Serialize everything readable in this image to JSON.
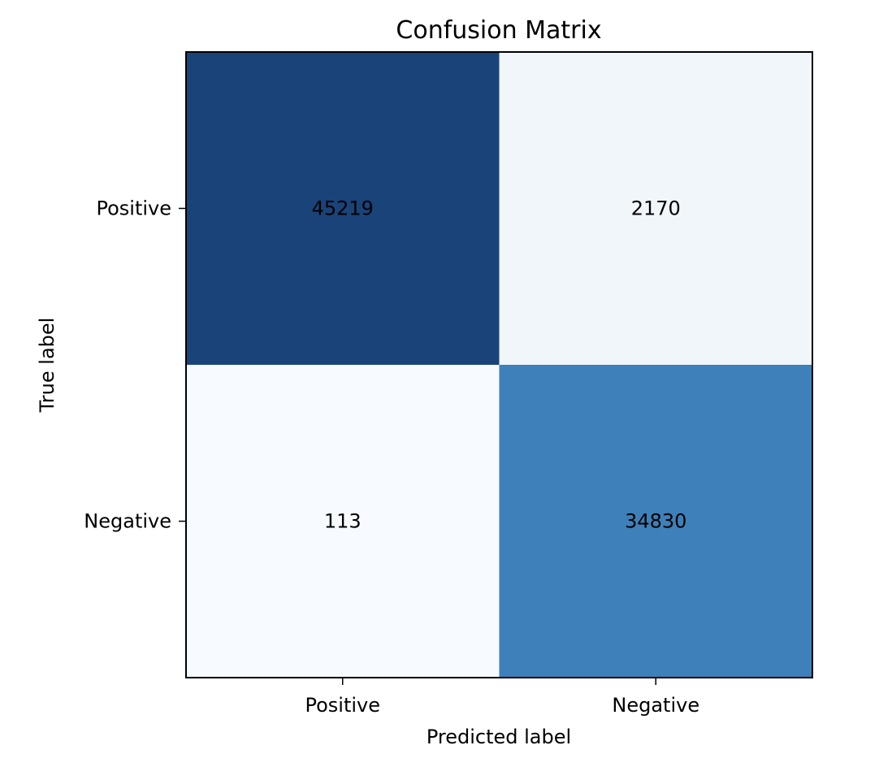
{
  "chart_data": {
    "type": "heatmap",
    "title": "Confusion Matrix",
    "xlabel": "Predicted label",
    "ylabel": "True label",
    "x_categories": [
      "Positive",
      "Negative"
    ],
    "y_categories": [
      "Positive",
      "Negative"
    ],
    "matrix": [
      [
        45219,
        2170
      ],
      [
        113,
        34830
      ]
    ],
    "colormap": "Blues",
    "colorbar": false,
    "grid": false,
    "cell_colors": [
      [
        "#1a4379",
        "#f1f6fa"
      ],
      [
        "#f7fbff",
        "#3e80b9"
      ]
    ],
    "text_color": "#000000"
  }
}
